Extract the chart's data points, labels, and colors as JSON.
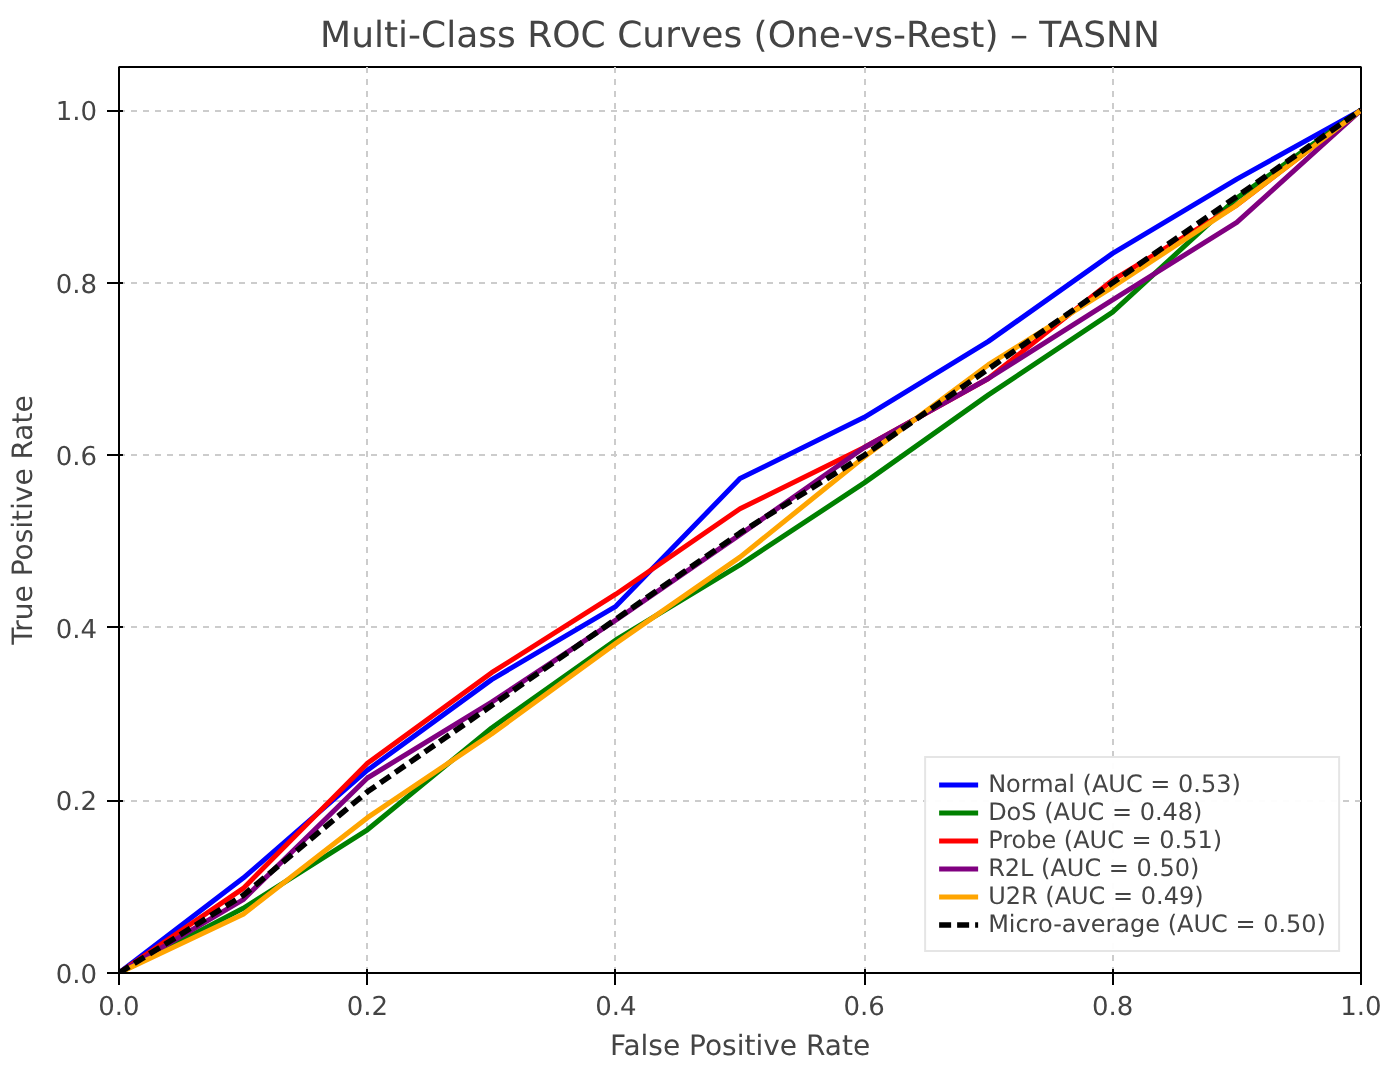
{
  "chart_data": {
    "type": "line",
    "title": "Multi-Class ROC Curves (One-vs-Rest) – TASNN",
    "xlabel": "False Positive Rate",
    "ylabel": "True Positive Rate",
    "x": [
      0,
      0.1,
      0.2,
      0.3,
      0.4,
      0.5,
      0.6,
      0.7,
      0.8,
      0.9,
      1
    ],
    "series": [
      {
        "name": "Normal (AUC = 0.53)",
        "color": "#0000ff",
        "values": [
          0,
          0.11,
          0.235,
          0.34,
          0.425,
          0.573,
          0.644,
          0.732,
          0.834,
          0.92,
          1
        ]
      },
      {
        "name": "DoS (AUC = 0.48)",
        "color": "#008000",
        "values": [
          0,
          0.075,
          0.166,
          0.284,
          0.386,
          0.473,
          0.568,
          0.67,
          0.766,
          0.898,
          1
        ]
      },
      {
        "name": "Probe (AUC = 0.51)",
        "color": "#ff0000",
        "values": [
          0,
          0.098,
          0.243,
          0.348,
          0.439,
          0.538,
          0.609,
          0.689,
          0.803,
          0.89,
          1
        ]
      },
      {
        "name": "R2L (AUC = 0.50)",
        "color": "#800080",
        "values": [
          0,
          0.085,
          0.226,
          0.314,
          0.409,
          0.508,
          0.609,
          0.689,
          0.78,
          0.87,
          1
        ]
      },
      {
        "name": "U2R (AUC = 0.49)",
        "color": "#ffa500",
        "values": [
          0,
          0.068,
          0.18,
          0.277,
          0.382,
          0.482,
          0.598,
          0.705,
          0.795,
          0.89,
          1
        ]
      },
      {
        "name": "Micro-average (AUC = 0.50)",
        "color": "#000000",
        "line_style": "dashed",
        "values": [
          0,
          0.09,
          0.21,
          0.31,
          0.41,
          0.51,
          0.6,
          0.7,
          0.8,
          0.9,
          1
        ]
      }
    ],
    "xlim": [
      0,
      1
    ],
    "ylim": [
      0,
      1.05
    ],
    "xticks": [
      {
        "value": 0,
        "label": "0.0"
      },
      {
        "value": 0.2,
        "label": "0.2"
      },
      {
        "value": 0.4,
        "label": "0.4"
      },
      {
        "value": 0.6,
        "label": "0.6"
      },
      {
        "value": 0.8,
        "label": "0.8"
      },
      {
        "value": 1,
        "label": "1.0"
      }
    ],
    "yticks": [
      {
        "value": 0,
        "label": "0.0"
      },
      {
        "value": 0.2,
        "label": "0.2"
      },
      {
        "value": 0.4,
        "label": "0.4"
      },
      {
        "value": 0.6,
        "label": "0.6"
      },
      {
        "value": 0.8,
        "label": "0.8"
      },
      {
        "value": 1,
        "label": "1.0"
      }
    ],
    "grid": true,
    "legend": "bottom right",
    "line_style": "solid"
  }
}
